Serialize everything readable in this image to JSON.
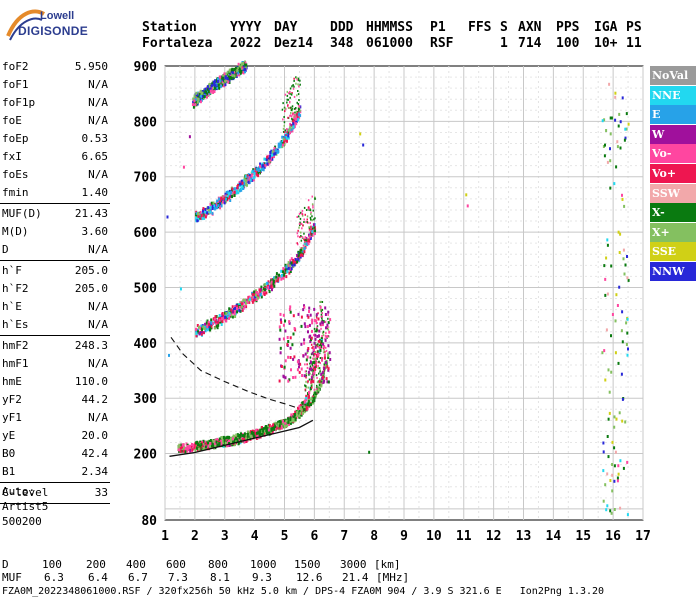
{
  "logo": {
    "line1": "Lowell",
    "line2": "DIGISONDE"
  },
  "header": {
    "labels": [
      "Station",
      "YYYY",
      "DAY",
      "DDD",
      "HHMMSS",
      "P1",
      "FFS",
      "S",
      "AXN",
      "PPS",
      "IGA",
      "PS"
    ],
    "values": [
      "Fortaleza",
      "2022",
      "Dez14",
      "348",
      "061000",
      "RSF",
      "",
      "1",
      "714",
      "100",
      "10+",
      "11"
    ]
  },
  "params_group1": [
    {
      "label": "foF2",
      "value": "5.950"
    },
    {
      "label": "foF1",
      "value": "N/A"
    },
    {
      "label": "foF1p",
      "value": "N/A"
    },
    {
      "label": "foE",
      "value": "N/A"
    },
    {
      "label": "foEp",
      "value": "0.53"
    },
    {
      "label": "fxI",
      "value": "6.65"
    },
    {
      "label": "foEs",
      "value": "N/A"
    },
    {
      "label": "fmin",
      "value": "1.40"
    }
  ],
  "params_group2": [
    {
      "label": "MUF(D)",
      "value": "21.43"
    },
    {
      "label": "M(D)",
      "value": "3.60"
    },
    {
      "label": "D",
      "value": "N/A"
    }
  ],
  "params_group3": [
    {
      "label": "h`F",
      "value": "205.0"
    },
    {
      "label": "h`F2",
      "value": "205.0"
    },
    {
      "label": "h`E",
      "value": "N/A"
    },
    {
      "label": "h`Es",
      "value": "N/A"
    }
  ],
  "params_group4": [
    {
      "label": "hmF2",
      "value": "248.3"
    },
    {
      "label": "hmF1",
      "value": "N/A"
    },
    {
      "label": "hmE",
      "value": "110.0"
    },
    {
      "label": "yF2",
      "value": "44.2"
    },
    {
      "label": "yF1",
      "value": "N/A"
    },
    {
      "label": "yE",
      "value": "20.0"
    },
    {
      "label": "B0",
      "value": "42.4"
    },
    {
      "label": "B1",
      "value": "2.34"
    }
  ],
  "params_group5": [
    {
      "label": "C-level",
      "value": "33"
    }
  ],
  "auto": {
    "line1": "Auto:",
    "line2": "Artist5",
    "line3": "500200"
  },
  "muf_table": {
    "row1_label": "D",
    "distances": [
      "100",
      "200",
      "400",
      "600",
      "800",
      "1000",
      "1500",
      "3000"
    ],
    "distance_unit": "[km]",
    "row2_label": "MUF",
    "mufs": [
      "6.3",
      "6.4",
      "6.7",
      "7.3",
      "8.1",
      "9.3",
      "12.6",
      "21.4"
    ],
    "muf_unit": "[MHz]"
  },
  "footer": "FZA0M_2022348061000.RSF / 320fx256h 50 kHz 5.0 km / DPS-4 FZA0M 904 / 3.9 S 321.6 E   Ion2Png 1.3.20",
  "legend": [
    {
      "label": "NoVal",
      "color": "#9a9a9a"
    },
    {
      "label": "NNE",
      "color": "#22d8f0"
    },
    {
      "label": "E",
      "color": "#27a2e8"
    },
    {
      "label": "W",
      "color": "#a0109c"
    },
    {
      "label": "Vo-",
      "color": "#ff46a0"
    },
    {
      "label": "Vo+",
      "color": "#ee1650"
    },
    {
      "label": "SSW",
      "color": "#f2a8aa"
    },
    {
      "label": "X-",
      "color": "#0a7a10"
    },
    {
      "label": "X+",
      "color": "#84c060"
    },
    {
      "label": "SSE",
      "color": "#d0d016"
    },
    {
      "label": "NNW",
      "color": "#2828d8"
    }
  ],
  "chart_data": {
    "type": "scatter",
    "xlim": [
      1,
      17
    ],
    "ylim": [
      80,
      900
    ],
    "x_ticks": [
      "1",
      "2",
      "3",
      "4",
      "5",
      "6",
      "7",
      "8",
      "9",
      "10",
      "11",
      "12",
      "13",
      "14",
      "15",
      "16",
      "17"
    ],
    "y_ticks": [
      "80",
      "200",
      "300",
      "400",
      "500",
      "600",
      "700",
      "800",
      "900"
    ],
    "grid": true,
    "traces": [
      {
        "name": "1-hop O",
        "points": [
          [
            1.4,
            212
          ],
          [
            2.0,
            214
          ],
          [
            2.5,
            218
          ],
          [
            3.0,
            222
          ],
          [
            3.5,
            228
          ],
          [
            4.0,
            236
          ],
          [
            4.5,
            245
          ],
          [
            5.0,
            258
          ],
          [
            5.3,
            270
          ],
          [
            5.6,
            290
          ],
          [
            5.8,
            312
          ],
          [
            5.95,
            350
          ],
          [
            6.1,
            385
          ],
          [
            6.25,
            410
          ]
        ]
      },
      {
        "name": "1-hop X",
        "points": [
          [
            2.0,
            216
          ],
          [
            2.6,
            222
          ],
          [
            3.2,
            228
          ],
          [
            3.8,
            236
          ],
          [
            4.4,
            246
          ],
          [
            5.0,
            258
          ],
          [
            5.5,
            275
          ],
          [
            5.9,
            298
          ],
          [
            6.2,
            330
          ],
          [
            6.45,
            380
          ]
        ]
      },
      {
        "name": "2-hop",
        "points": [
          [
            2.0,
            420
          ],
          [
            2.5,
            432
          ],
          [
            3.0,
            448
          ],
          [
            3.5,
            466
          ],
          [
            4.0,
            485
          ],
          [
            4.5,
            505
          ],
          [
            5.0,
            530
          ],
          [
            5.5,
            560
          ],
          [
            6.0,
            610
          ]
        ]
      },
      {
        "name": "3-hop",
        "points": [
          [
            2.0,
            625
          ],
          [
            2.5,
            642
          ],
          [
            3.0,
            662
          ],
          [
            3.5,
            684
          ],
          [
            4.0,
            708
          ],
          [
            4.5,
            735
          ],
          [
            5.0,
            770
          ],
          [
            5.5,
            820
          ]
        ]
      },
      {
        "name": "4-hop",
        "points": [
          [
            1.9,
            835
          ],
          [
            2.3,
            852
          ],
          [
            2.7,
            868
          ],
          [
            3.2,
            885
          ],
          [
            3.7,
            900
          ]
        ]
      }
    ],
    "profile_curve": [
      [
        1.15,
        195
      ],
      [
        2.0,
        202
      ],
      [
        3.0,
        215
      ],
      [
        4.0,
        228
      ],
      [
        4.8,
        238
      ],
      [
        5.5,
        247
      ],
      [
        5.95,
        260
      ]
    ],
    "dashed_curve": [
      [
        1.2,
        410
      ],
      [
        1.6,
        380
      ],
      [
        2.2,
        350
      ],
      [
        3.0,
        330
      ],
      [
        3.8,
        312
      ],
      [
        4.5,
        298
      ],
      [
        5.0,
        290
      ],
      [
        5.4,
        283
      ]
    ]
  }
}
